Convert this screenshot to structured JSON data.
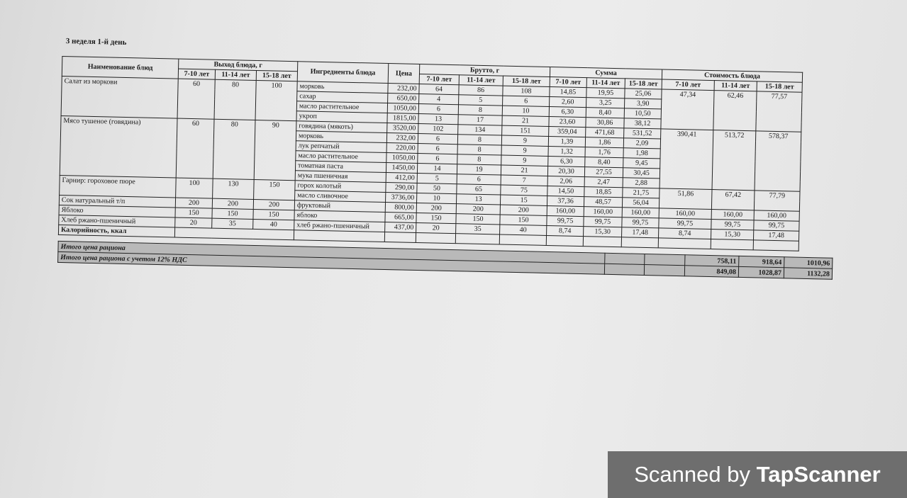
{
  "title": "3 неделя 1-й день",
  "headers": {
    "dish_name": "Наименование блюд",
    "yield": "Выход блюда, г",
    "ingredients": "Ингредиенты блюда",
    "price": "Цена",
    "brutto": "Брутто, г",
    "sum": "Сумма",
    "cost": "Стоимость блюда",
    "ages": [
      "7-10 лет",
      "11-14 лет",
      "15-18 лет"
    ]
  },
  "dishes": [
    {
      "name": "Салат из моркови",
      "yield": [
        "60",
        "80",
        "100"
      ],
      "cost": [
        "47,34",
        "62,46",
        "77,57"
      ],
      "ingredients": [
        [
          "морковь",
          "232,00",
          "64",
          "86",
          "108",
          "14,85",
          "19,95",
          "25,06"
        ],
        [
          "сахар",
          "650,00",
          "4",
          "5",
          "6",
          "2,60",
          "3,25",
          "3,90"
        ],
        [
          "масло растительное",
          "1050,00",
          "6",
          "8",
          "10",
          "6,30",
          "8,40",
          "10,50"
        ],
        [
          "укроп",
          "1815,00",
          "13",
          "17",
          "21",
          "23,60",
          "30,86",
          "38,12"
        ]
      ]
    },
    {
      "name": "Мясо тушеное (говядина)",
      "yield": [
        "60",
        "80",
        "90"
      ],
      "cost": [
        "390,41",
        "513,72",
        "578,37"
      ],
      "ingredients": [
        [
          "говядина (мякоть)",
          "3520,00",
          "102",
          "134",
          "151",
          "359,04",
          "471,68",
          "531,52"
        ],
        [
          "морковь",
          "232,00",
          "6",
          "8",
          "9",
          "1,39",
          "1,86",
          "2,09"
        ],
        [
          "лук репчатый",
          "220,00",
          "6",
          "8",
          "9",
          "1,32",
          "1,76",
          "1,98"
        ],
        [
          "масло растительное",
          "1050,00",
          "6",
          "8",
          "9",
          "6,30",
          "8,40",
          "9,45"
        ],
        [
          "томатная паста",
          "1450,00",
          "14",
          "19",
          "21",
          "20,30",
          "27,55",
          "30,45"
        ],
        [
          "мука пшеничная",
          "412,00",
          "5",
          "6",
          "7",
          "2,06",
          "2,47",
          "2,88"
        ]
      ]
    },
    {
      "name": "Гарнир: гороховое пюре",
      "yield": [
        "100",
        "130",
        "150"
      ],
      "cost": [
        "51,86",
        "67,42",
        "77,79"
      ],
      "ingredients": [
        [
          "горох колотый",
          "290,00",
          "50",
          "65",
          "75",
          "14,50",
          "18,85",
          "21,75"
        ],
        [
          "масло сливочное",
          "3736,00",
          "10",
          "13",
          "15",
          "37,36",
          "48,57",
          "56,04"
        ]
      ]
    },
    {
      "name": "Сок натуральный т/п",
      "yield": [
        "200",
        "200",
        "200"
      ],
      "cost": [
        "160,00",
        "160,00",
        "160,00"
      ],
      "ingredients": [
        [
          "фруктовый",
          "800,00",
          "200",
          "200",
          "200",
          "160,00",
          "160,00",
          "160,00"
        ]
      ]
    },
    {
      "name": "Яблоко",
      "yield": [
        "150",
        "150",
        "150"
      ],
      "cost": [
        "99,75",
        "99,75",
        "99,75"
      ],
      "ingredients": [
        [
          "яблоко",
          "665,00",
          "150",
          "150",
          "150",
          "99,75",
          "99,75",
          "99,75"
        ]
      ]
    },
    {
      "name": "Хлеб ржано-пшеничный",
      "yield": [
        "20",
        "35",
        "40"
      ],
      "cost": [
        "8,74",
        "15,30",
        "17,48"
      ],
      "ingredients": [
        [
          "хлеб ржано-пшеничный",
          "437,00",
          "20",
          "35",
          "40",
          "8,74",
          "15,30",
          "17,48"
        ]
      ]
    }
  ],
  "calories_label": "Калорийность, ккал",
  "totals": [
    {
      "label": "Итого цена рациона",
      "values": [
        "758,11",
        "918,64",
        "1010,96"
      ]
    },
    {
      "label": "Итого цена рациона с учетом 12% НДС",
      "values": [
        "849,08",
        "1028,87",
        "1132,28"
      ]
    }
  ],
  "watermark": {
    "prefix": "Scanned by ",
    "brand": "TapScanner"
  }
}
